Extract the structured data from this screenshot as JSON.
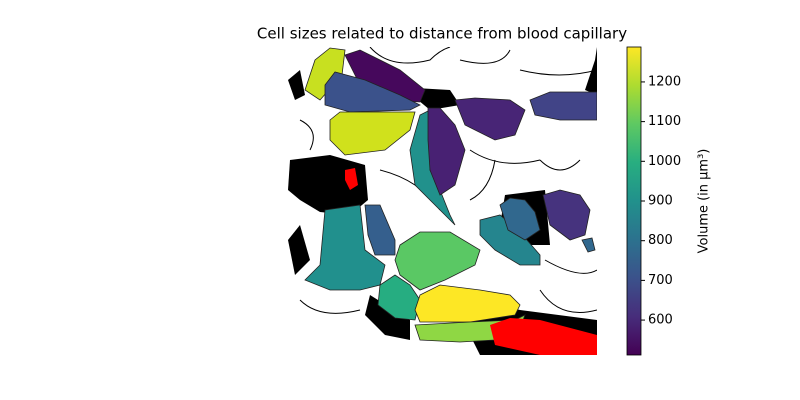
{
  "chart_data": {
    "type": "image",
    "title": "Cell sizes related to distance from blood capillary",
    "colorbar": {
      "label": "Volume (in μm³)",
      "lim": [
        512,
        1288
      ],
      "ticks": [
        600,
        700,
        800,
        900,
        1000,
        1100,
        1200
      ],
      "colormap": "viridis"
    }
  }
}
